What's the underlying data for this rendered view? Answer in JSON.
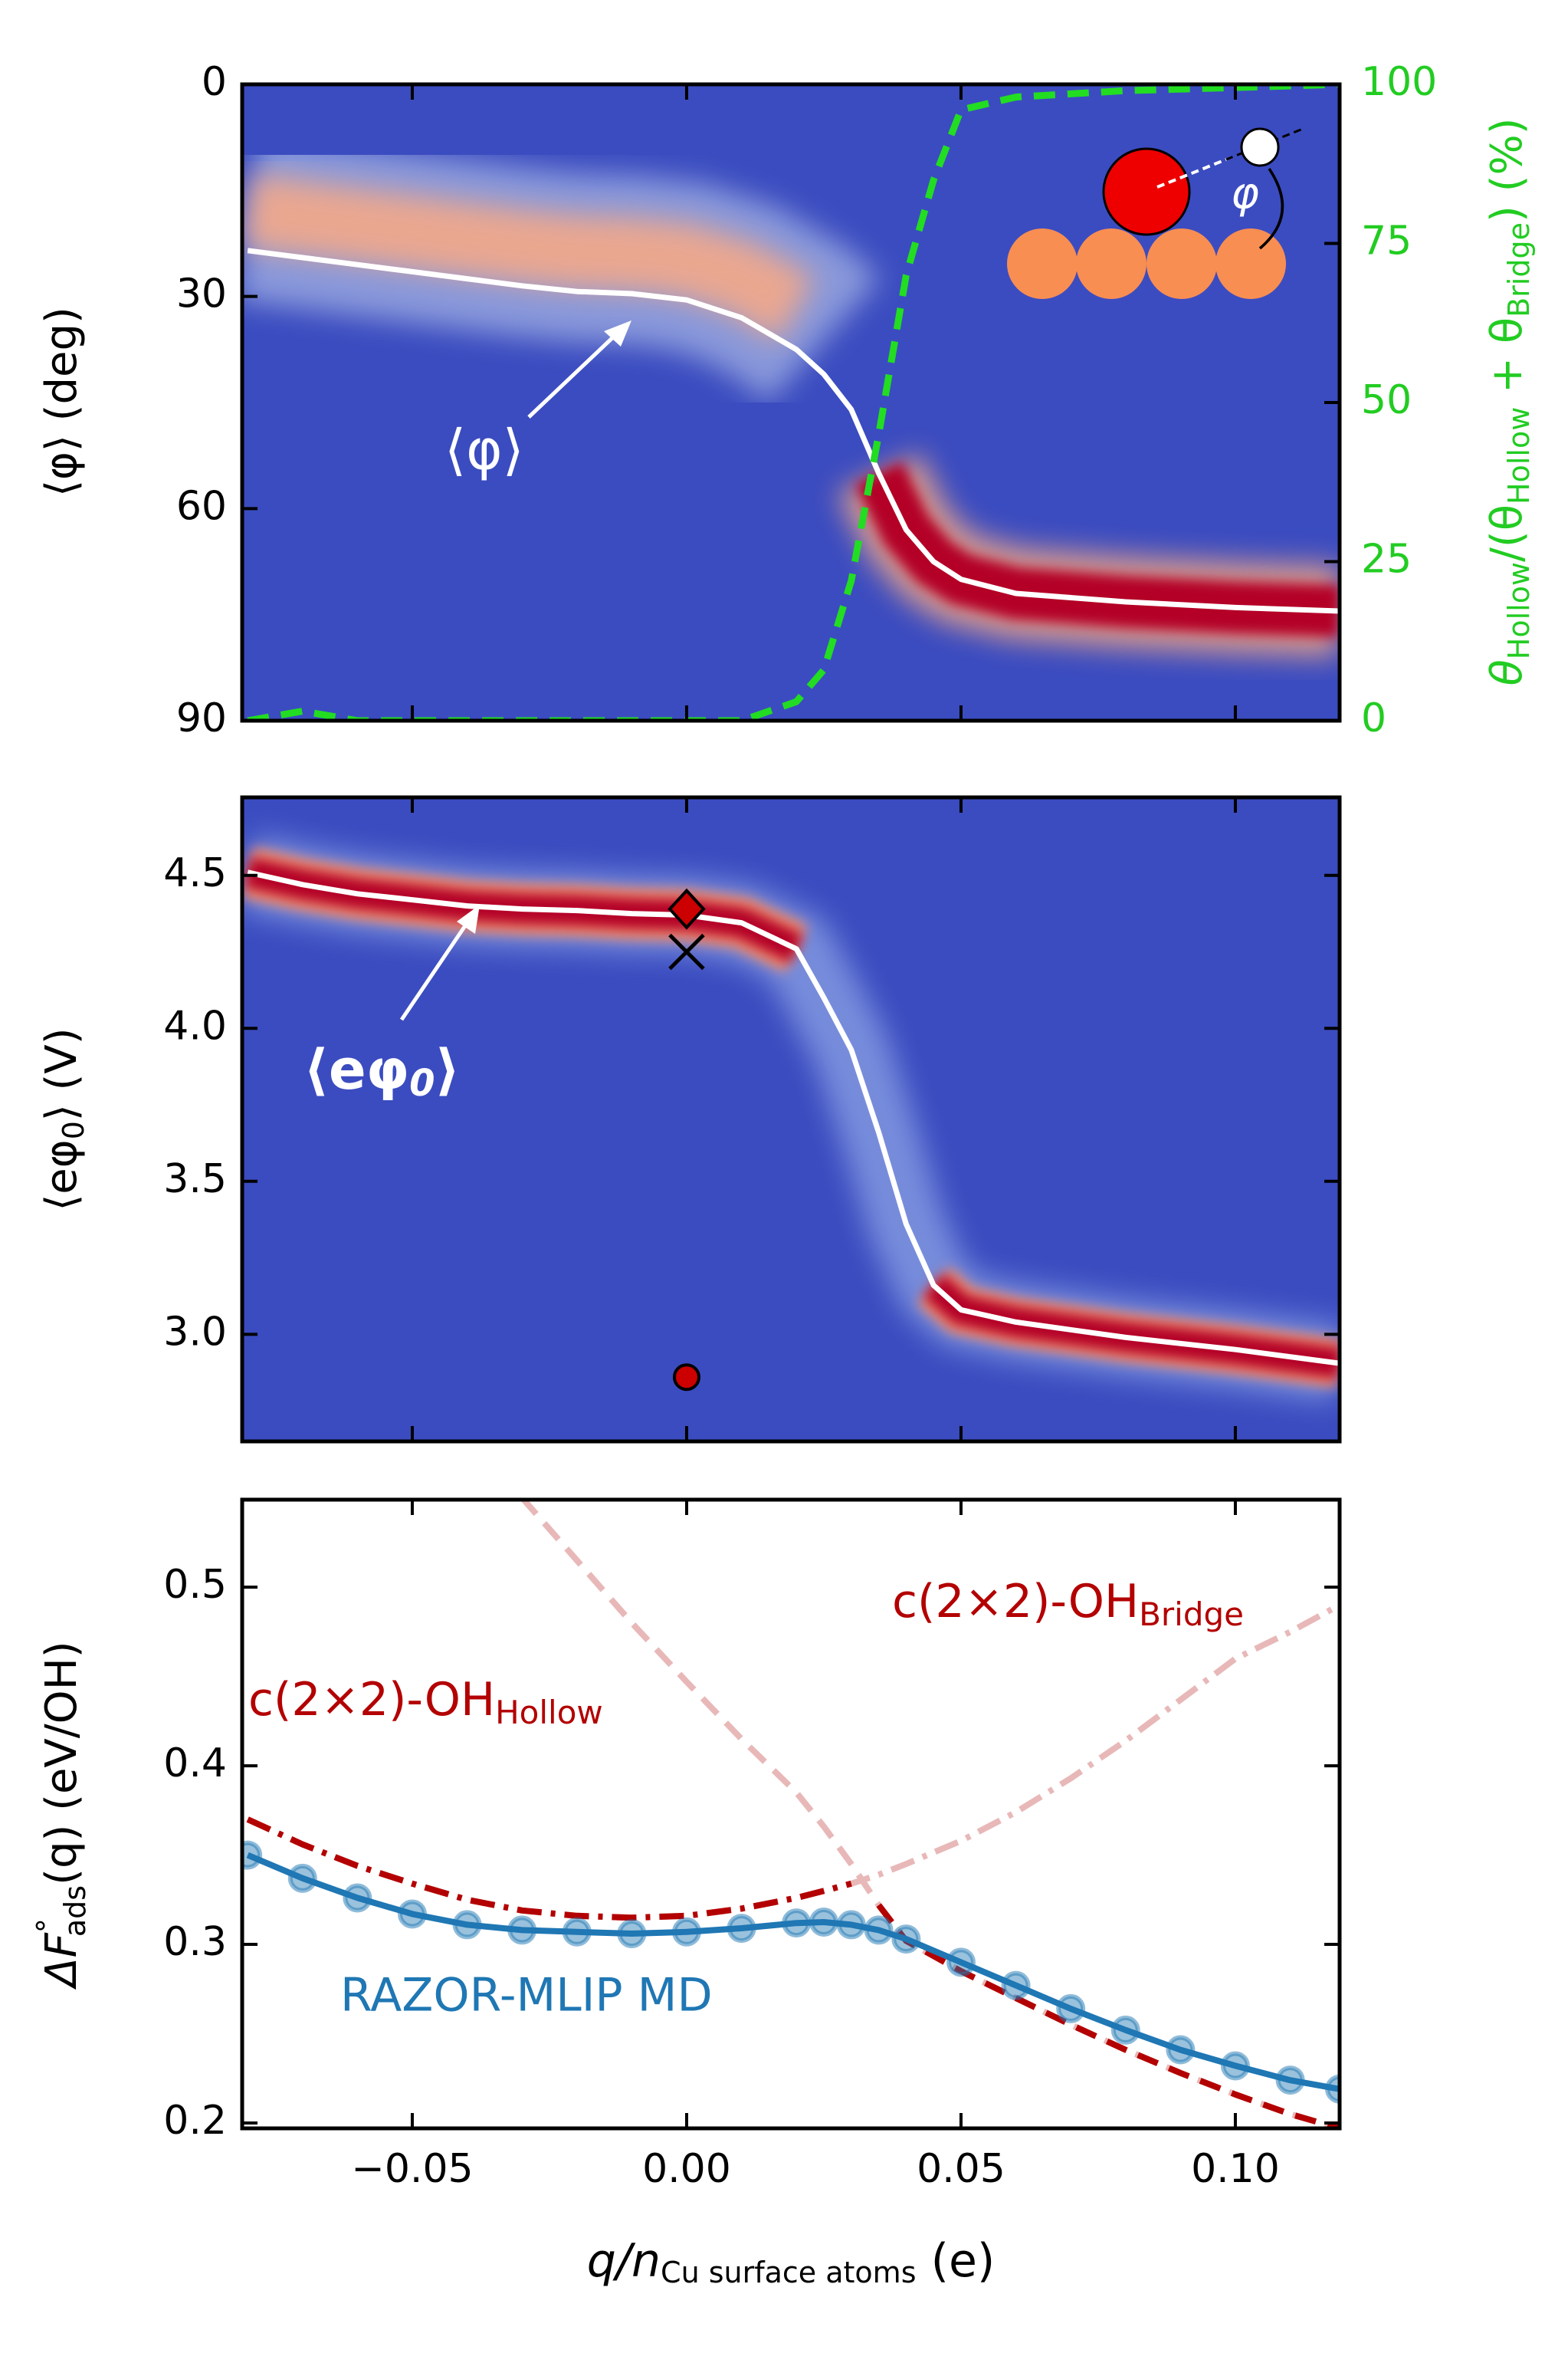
{
  "chart_data": [
    {
      "type": "line",
      "ylabel": "⟨φ⟩ (deg)",
      "y2label": [
        "θ",
        "Hollow",
        "/(θ",
        "Hollow",
        " + θ",
        "Bridge",
        ") (%)"
      ],
      "annotation": "⟨φ⟩",
      "inset_label": "φ",
      "x": [
        -0.08,
        -0.07,
        -0.06,
        -0.05,
        -0.04,
        -0.03,
        -0.02,
        -0.01,
        0,
        0.01,
        0.02,
        0.025,
        0.03,
        0.035,
        0.04,
        0.045,
        0.05,
        0.06,
        0.08,
        0.1,
        0.119
      ],
      "xlim": [
        -0.081,
        0.119
      ],
      "ylim": [
        0,
        90
      ],
      "y_inverted": true,
      "yticks": [
        0,
        30,
        60,
        90
      ],
      "y2lim": [
        0,
        100
      ],
      "y2ticks": [
        0,
        25,
        50,
        75,
        100
      ],
      "series": [
        {
          "color": "#ffffff",
          "values": [
            23.5,
            24.5,
            25.5,
            26.5,
            27.5,
            28.5,
            29.3,
            29.6,
            30.5,
            33,
            37.5,
            41,
            46,
            55,
            63,
            67.5,
            70,
            72,
            73.2,
            74,
            74.5
          ]
        },
        {
          "color": "#22dd22",
          "axis": "y2",
          "linestyle": "dashed",
          "values": [
            0,
            1.5,
            0,
            0,
            0,
            0,
            0,
            0,
            0,
            0,
            3,
            8,
            22,
            45,
            70,
            85,
            96,
            98,
            99,
            99.5,
            100
          ]
        }
      ]
    },
    {
      "type": "line",
      "ylabel": [
        "⟨eφ",
        "0",
        "⟩ (V)"
      ],
      "annotation": [
        "⟨eφ",
        "0",
        "⟩"
      ],
      "x": [
        -0.08,
        -0.07,
        -0.06,
        -0.05,
        -0.04,
        -0.03,
        -0.02,
        -0.01,
        0,
        0.01,
        0.02,
        0.025,
        0.03,
        0.035,
        0.04,
        0.045,
        0.05,
        0.06,
        0.08,
        0.1,
        0.119
      ],
      "xlim": [
        -0.081,
        0.119
      ],
      "ylim": [
        2.65,
        4.755
      ],
      "yticks": [
        {
          "value": 3,
          "label": "3.0"
        },
        3.5,
        {
          "value": 4,
          "label": "4.0"
        },
        4.5
      ],
      "series": [
        {
          "color": "#ffffff",
          "values": [
            4.51,
            4.47,
            4.44,
            4.42,
            4.4,
            4.39,
            4.385,
            4.375,
            4.37,
            4.345,
            4.26,
            4.1,
            3.93,
            3.66,
            3.36,
            3.16,
            3.08,
            3.04,
            2.99,
            2.95,
            2.905
          ]
        }
      ],
      "markers": [
        {
          "x": 0,
          "y": 4.39,
          "shape": "diamond",
          "color": "#cc0000"
        },
        {
          "x": 0,
          "y": 4.25,
          "shape": "x",
          "color": "#000000"
        },
        {
          "x": 0,
          "y": 2.86,
          "shape": "circle",
          "color": "#cc0000"
        }
      ]
    },
    {
      "type": "line",
      "xlabel": [
        "q",
        "/n",
        "Cu surface atoms",
        " (e)"
      ],
      "ylabel": [
        "ΔF",
        "°",
        "ads",
        "(q) (eV/OH)"
      ],
      "x": [
        -0.08,
        -0.07,
        -0.06,
        -0.05,
        -0.04,
        -0.03,
        -0.02,
        -0.01,
        0,
        0.01,
        0.02,
        0.025,
        0.03,
        0.035,
        0.04,
        0.05,
        0.06,
        0.07,
        0.08,
        0.09,
        0.1,
        0.11,
        0.119
      ],
      "xlim": [
        -0.081,
        0.119
      ],
      "xticks": [
        {
          "value": -0.05,
          "label": "−0.05"
        },
        {
          "value": 0,
          "label": "0.00"
        },
        {
          "value": 0.05,
          "label": "0.05"
        },
        {
          "value": 0.1,
          "label": "0.10"
        }
      ],
      "ylim": [
        0.197,
        0.549
      ],
      "yticks": [
        0.2,
        0.3,
        0.4,
        0.5
      ],
      "series": [
        {
          "name": [
            "c(2×2)-OH",
            "Bridge"
          ],
          "color": "#b30000",
          "faded_color": "#e8b8b8",
          "linestyle": "dashdot",
          "values": [
            0.37,
            0.356,
            0.344,
            0.334,
            0.325,
            0.319,
            0.316,
            0.315,
            0.316,
            0.32,
            0.326,
            0.33,
            0.334,
            0.339,
            0.345,
            0.358,
            0.374,
            0.393,
            0.414,
            0.437,
            0.46,
            0.475,
            0.49
          ]
        },
        {
          "name": [
            "c(2×2)-OH",
            "Hollow"
          ],
          "color": "#b30000",
          "faded_color": "#e8b8b8",
          "linestyle": "dashed",
          "values": [
            null,
            null,
            null,
            null,
            null,
            0.55,
            0.515,
            0.48,
            0.447,
            0.415,
            0.385,
            0.366,
            0.345,
            0.322,
            0.302,
            0.285,
            0.27,
            0.255,
            0.241,
            0.228,
            0.216,
            0.205,
            0.197
          ]
        },
        {
          "name": "RAZOR-MLIP MD",
          "color": "#1f77b4",
          "marker": "circle",
          "values": [
            0.35,
            0.337,
            0.326,
            0.317,
            0.311,
            0.308,
            0.307,
            0.306,
            0.307,
            0.309,
            0.312,
            0.3125,
            0.311,
            0.308,
            0.303,
            0.29,
            0.277,
            0.264,
            0.252,
            0.241,
            0.232,
            0.224,
            0.219
          ]
        }
      ]
    }
  ]
}
